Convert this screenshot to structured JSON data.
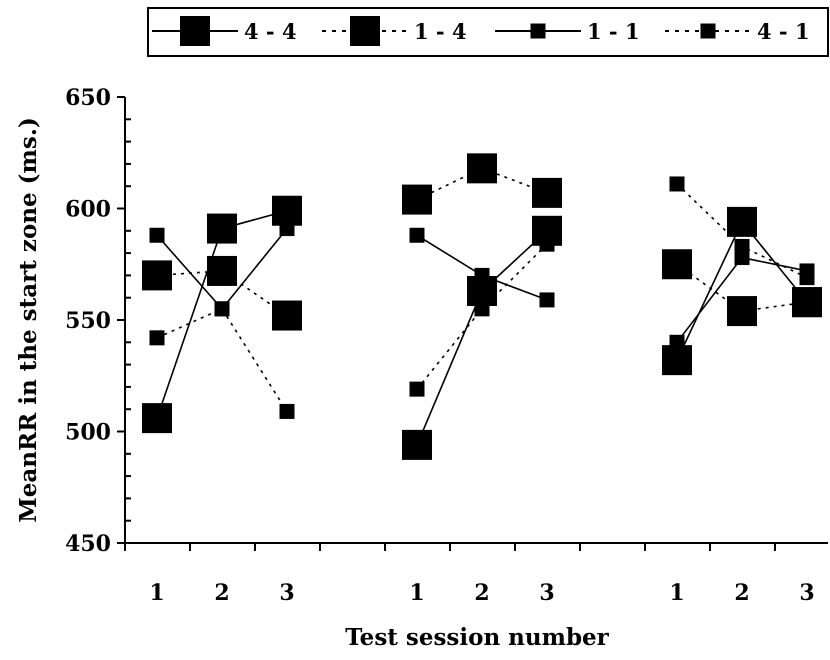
{
  "chart_data": {
    "type": "line",
    "xlabel": "Test session number",
    "ylabel": "MeanRR in the start zone (ms.)",
    "ylim": [
      450,
      650
    ],
    "yticks": [
      450,
      500,
      550,
      600,
      650
    ],
    "groups": [
      {
        "ticks": [
          "1",
          "2",
          "3"
        ]
      },
      {
        "ticks": [
          "1",
          "2",
          "3"
        ]
      },
      {
        "ticks": [
          "1",
          "2",
          "3"
        ]
      }
    ],
    "legend_position": "top",
    "series": [
      {
        "name": "4 - 4",
        "marker": "large-square",
        "line": "solid",
        "values": [
          [
            506,
            591,
            599
          ],
          [
            494,
            563,
            590
          ],
          [
            532,
            594,
            558
          ]
        ]
      },
      {
        "name": "1 - 4",
        "marker": "large-square",
        "line": "dotted",
        "values": [
          [
            570,
            572,
            552
          ],
          [
            604,
            618,
            607
          ],
          [
            575,
            554,
            558
          ]
        ]
      },
      {
        "name": "1 - 1",
        "marker": "small-square",
        "line": "solid",
        "values": [
          [
            588,
            555,
            591
          ],
          [
            588,
            570,
            559
          ],
          [
            540,
            578,
            572
          ]
        ]
      },
      {
        "name": "4 - 1",
        "marker": "small-square",
        "line": "dotted",
        "values": [
          [
            542,
            555,
            509
          ],
          [
            519,
            555,
            584
          ],
          [
            611,
            583,
            569
          ]
        ]
      }
    ]
  }
}
